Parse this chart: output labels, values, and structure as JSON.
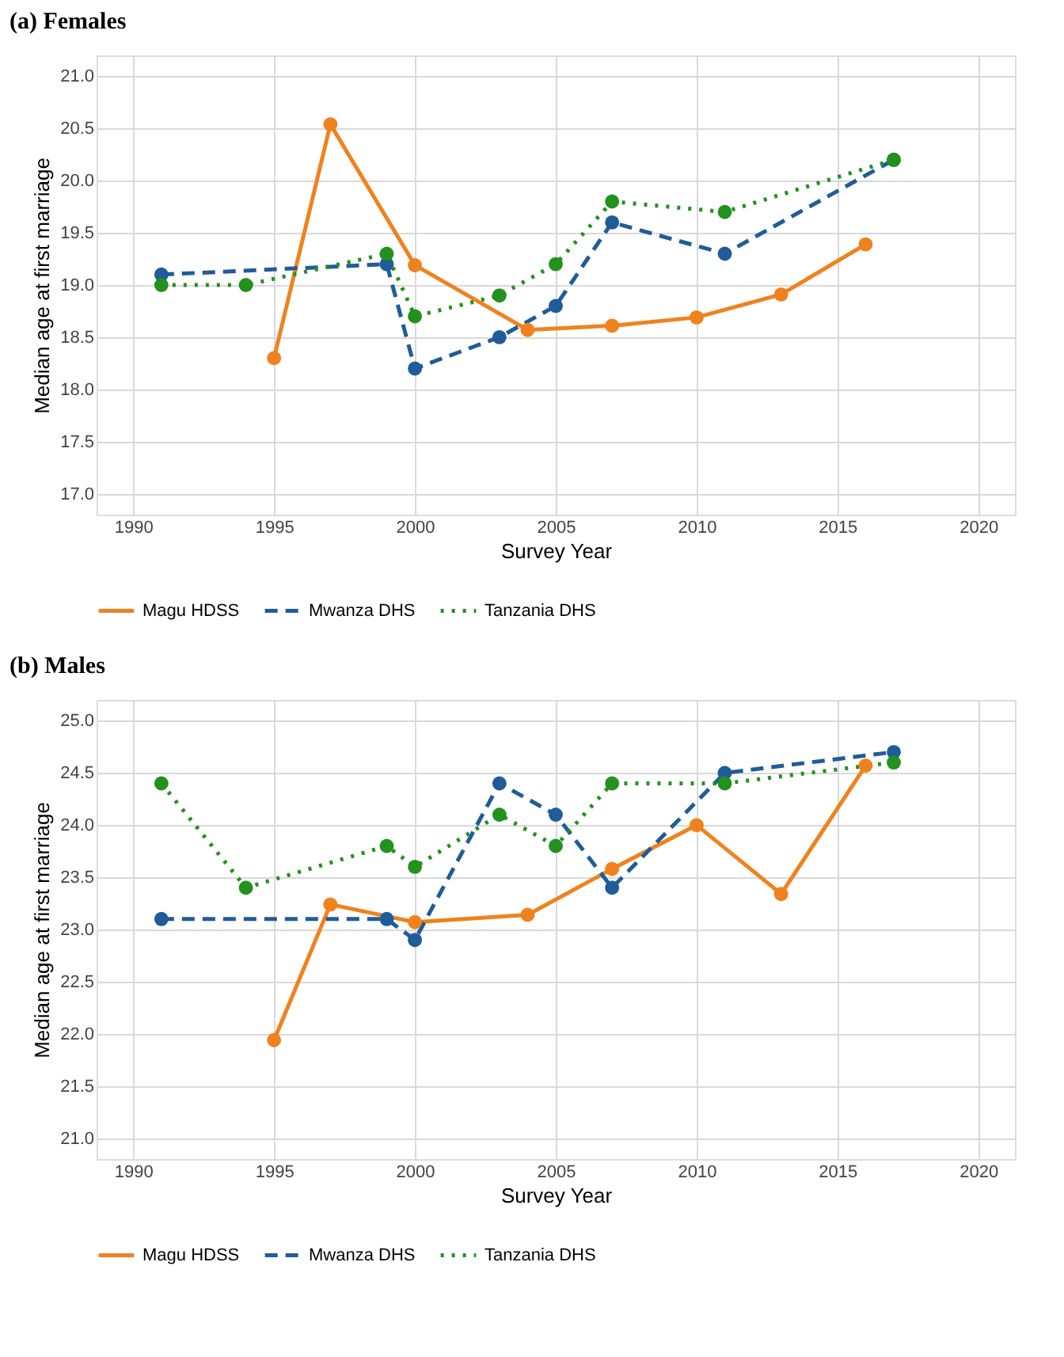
{
  "chart_data": [
    {
      "type": "line",
      "title": "(a)   Females",
      "xlabel": "Survey Year",
      "ylabel": "Median age at first marriage",
      "xlim": [
        1988.7,
        2021.3
      ],
      "ylim": [
        16.8,
        21.2
      ],
      "xticks": [
        1990,
        1995,
        2000,
        2005,
        2010,
        2015,
        2020
      ],
      "yticks": [
        {
          "value": 17,
          "label": "17.0"
        },
        {
          "value": 17.5,
          "label": "17.5"
        },
        {
          "value": 18,
          "label": "18.0"
        },
        {
          "value": 18.5,
          "label": "18.5"
        },
        {
          "value": 19,
          "label": "19.0"
        },
        {
          "value": 19.5,
          "label": "19.5"
        },
        {
          "value": 20,
          "label": "20.0"
        },
        {
          "value": 20.5,
          "label": "20.5"
        },
        {
          "value": 21,
          "label": "21.0"
        }
      ],
      "grid": true,
      "legend": "bottom",
      "marker": "circle",
      "series": [
        {
          "name": "Magu HDSS",
          "color": "#f0821e",
          "line_style": "solid",
          "x": [
            1995,
            1997,
            2000,
            2004,
            2007,
            2010,
            2013,
            2016
          ],
          "values": [
            18.3,
            20.54,
            19.19,
            18.57,
            18.61,
            18.69,
            18.91,
            19.39
          ]
        },
        {
          "name": "Mwanza DHS",
          "color": "#1f5c99",
          "line_style": "dashed",
          "x": [
            1991,
            1999,
            2000,
            2003,
            2005,
            2007,
            2011,
            2017
          ],
          "values": [
            19.1,
            19.2,
            18.2,
            18.5,
            18.8,
            19.6,
            19.3,
            20.2
          ]
        },
        {
          "name": "Tanzania DHS",
          "color": "#23911d",
          "line_style": "dotted",
          "x": [
            1991,
            1994,
            1999,
            2000,
            2003,
            2005,
            2007,
            2011,
            2017
          ],
          "values": [
            19.0,
            19.0,
            19.3,
            18.7,
            18.9,
            19.2,
            19.8,
            19.7,
            20.2
          ]
        }
      ]
    },
    {
      "type": "line",
      "title": "(b)   Males",
      "xlabel": "Survey Year",
      "ylabel": "Median age at first marriage",
      "xlim": [
        1988.7,
        2021.3
      ],
      "ylim": [
        20.8,
        25.2
      ],
      "xticks": [
        1990,
        1995,
        2000,
        2005,
        2010,
        2015,
        2020
      ],
      "yticks": [
        {
          "value": 21,
          "label": "21.0"
        },
        {
          "value": 21.5,
          "label": "21.5"
        },
        {
          "value": 22,
          "label": "22.0"
        },
        {
          "value": 22.5,
          "label": "22.5"
        },
        {
          "value": 23,
          "label": "23.0"
        },
        {
          "value": 23.5,
          "label": "23.5"
        },
        {
          "value": 24,
          "label": "24.0"
        },
        {
          "value": 24.5,
          "label": "24.5"
        },
        {
          "value": 25,
          "label": "25.0"
        }
      ],
      "grid": true,
      "legend": "bottom",
      "marker": "circle",
      "series": [
        {
          "name": "Magu HDSS",
          "color": "#f0821e",
          "line_style": "solid",
          "x": [
            1995,
            1997,
            2000,
            2004,
            2007,
            2010,
            2013,
            2016
          ],
          "values": [
            21.94,
            23.24,
            23.07,
            23.14,
            23.58,
            24.0,
            23.34,
            24.57
          ]
        },
        {
          "name": "Mwanza DHS",
          "color": "#1f5c99",
          "line_style": "dashed",
          "x": [
            1991,
            1999,
            2000,
            2003,
            2005,
            2007,
            2011,
            2017
          ],
          "values": [
            23.1,
            23.1,
            22.9,
            24.4,
            24.1,
            23.4,
            24.5,
            24.7
          ]
        },
        {
          "name": "Tanzania DHS",
          "color": "#23911d",
          "line_style": "dotted",
          "x": [
            1991,
            1994,
            1999,
            2000,
            2003,
            2005,
            2007,
            2011,
            2017
          ],
          "values": [
            24.4,
            23.4,
            23.8,
            23.6,
            24.1,
            23.8,
            24.4,
            24.4,
            24.6
          ]
        }
      ]
    }
  ]
}
